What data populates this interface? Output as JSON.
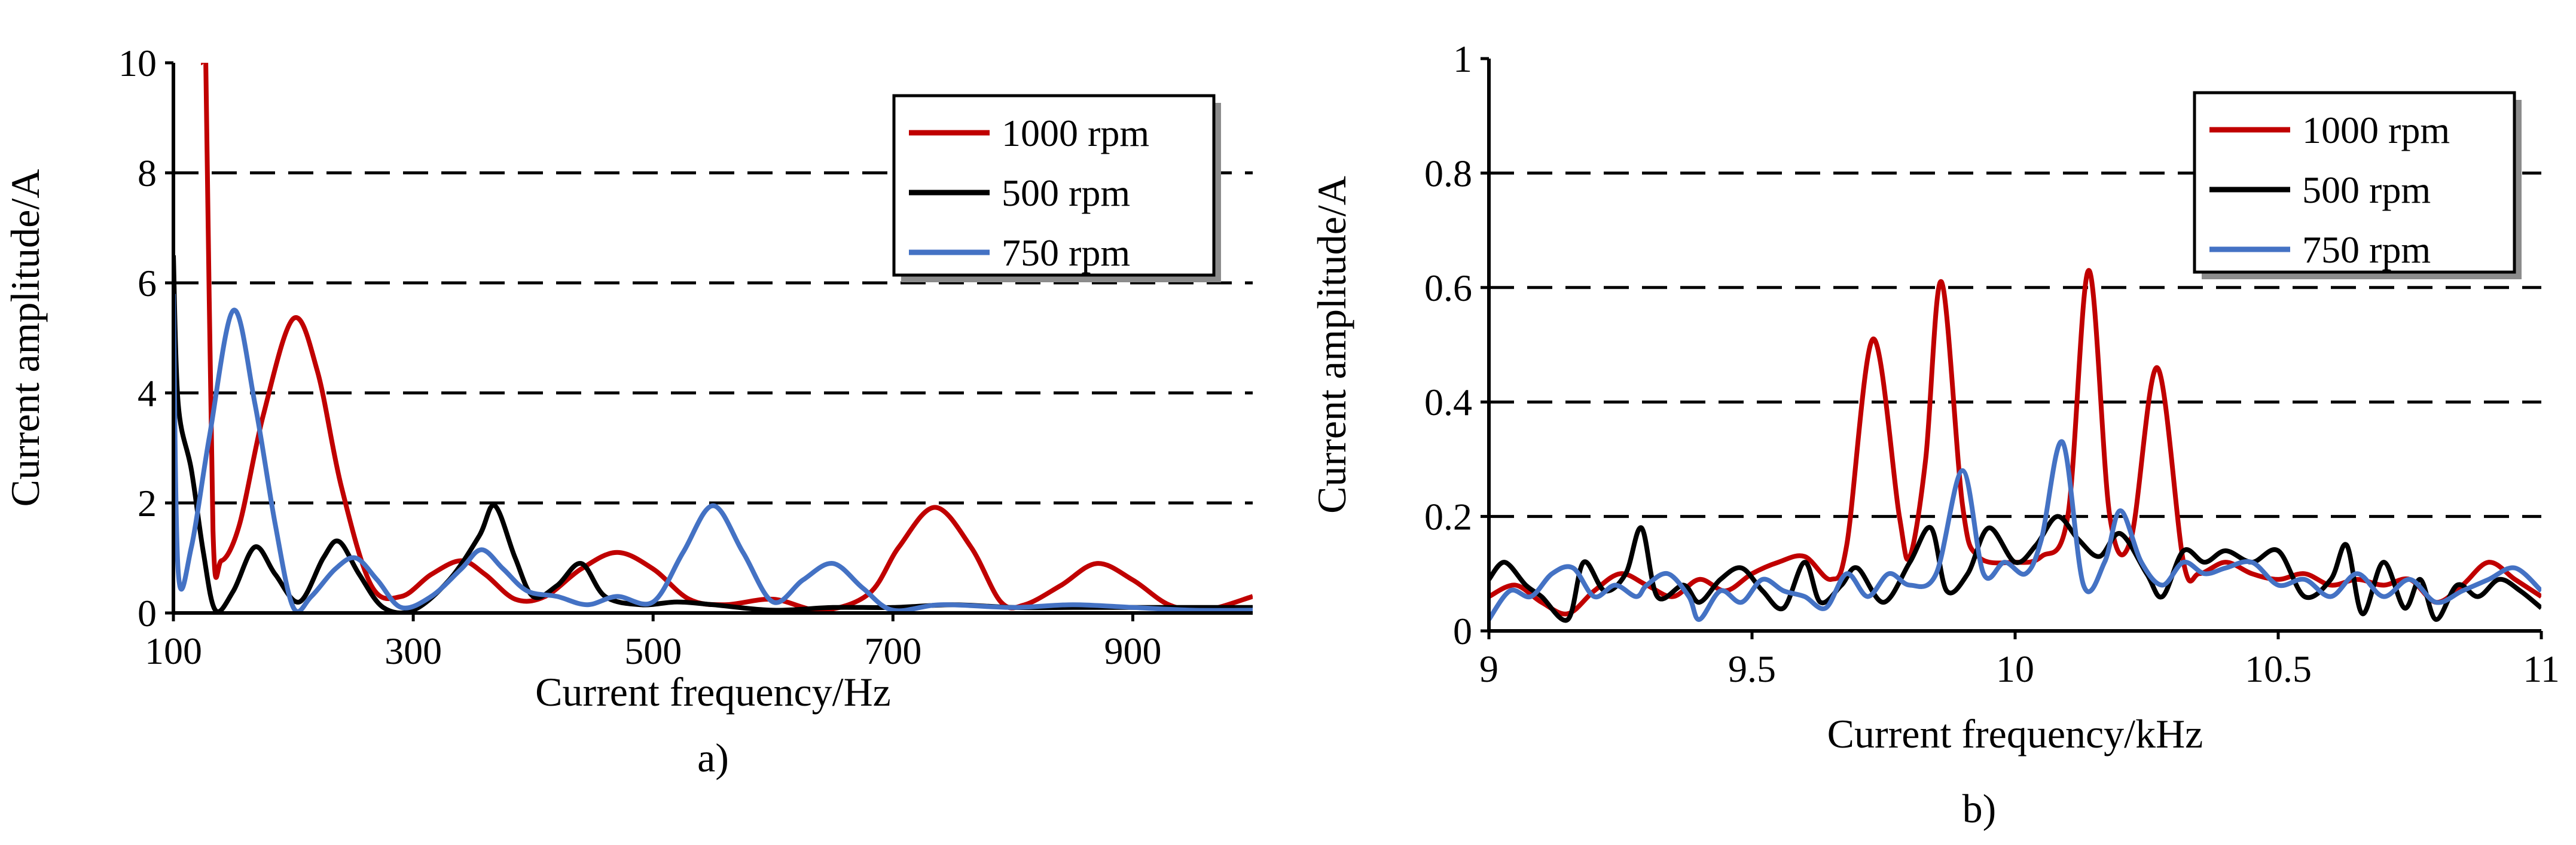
{
  "chart_data": [
    {
      "id": "a",
      "type": "line",
      "panel_label": "a)",
      "xlabel": "Current  frequency/Hz",
      "ylabel": "Current  amplitude/A",
      "xlim": [
        100,
        1000
      ],
      "ylim": [
        0,
        10
      ],
      "xticks": [
        100,
        300,
        500,
        700,
        900
      ],
      "yticks": [
        0,
        2,
        4,
        6,
        8,
        10
      ],
      "grid": "dashed-horizontal",
      "legend_position": "top-right",
      "series": [
        {
          "name": "1000 rpm",
          "color": "#c00000",
          "points": [
            [
              123,
              10
            ],
            [
              127,
              10
            ],
            [
              133,
              1.5
            ],
            [
              140,
              0.95
            ],
            [
              155,
              1.6
            ],
            [
              175,
              3.6
            ],
            [
              200,
              5.35
            ],
            [
              220,
              4.4
            ],
            [
              240,
              2.3
            ],
            [
              265,
              0.5
            ],
            [
              290,
              0.3
            ],
            [
              315,
              0.7
            ],
            [
              340,
              0.95
            ],
            [
              360,
              0.7
            ],
            [
              385,
              0.25
            ],
            [
              410,
              0.3
            ],
            [
              440,
              0.8
            ],
            [
              470,
              1.1
            ],
            [
              500,
              0.8
            ],
            [
              530,
              0.25
            ],
            [
              560,
              0.15
            ],
            [
              600,
              0.25
            ],
            [
              640,
              0.05
            ],
            [
              680,
              0.35
            ],
            [
              705,
              1.2
            ],
            [
              735,
              1.92
            ],
            [
              765,
              1.2
            ],
            [
              790,
              0.2
            ],
            [
              810,
              0.15
            ],
            [
              840,
              0.5
            ],
            [
              870,
              0.9
            ],
            [
              900,
              0.6
            ],
            [
              930,
              0.15
            ],
            [
              960,
              0.05
            ],
            [
              1000,
              0.3
            ]
          ]
        },
        {
          "name": "500 rpm",
          "color": "#000000",
          "points": [
            [
              100,
              6.5
            ],
            [
              104,
              3.8
            ],
            [
              115,
              2.6
            ],
            [
              125,
              1.1
            ],
            [
              135,
              0.05
            ],
            [
              150,
              0.4
            ],
            [
              168,
              1.2
            ],
            [
              185,
              0.7
            ],
            [
              205,
              0.2
            ],
            [
              225,
              1.0
            ],
            [
              238,
              1.3
            ],
            [
              255,
              0.7
            ],
            [
              275,
              0.1
            ],
            [
              300,
              0.05
            ],
            [
              330,
              0.6
            ],
            [
              355,
              1.4
            ],
            [
              368,
              1.95
            ],
            [
              385,
              1.0
            ],
            [
              400,
              0.3
            ],
            [
              420,
              0.5
            ],
            [
              440,
              0.9
            ],
            [
              460,
              0.3
            ],
            [
              490,
              0.15
            ],
            [
              520,
              0.2
            ],
            [
              550,
              0.15
            ],
            [
              600,
              0.05
            ],
            [
              650,
              0.1
            ],
            [
              700,
              0.1
            ],
            [
              750,
              0.15
            ],
            [
              800,
              0.1
            ],
            [
              850,
              0.1
            ],
            [
              900,
              0.1
            ],
            [
              1000,
              0.1
            ]
          ]
        },
        {
          "name": "750 rpm",
          "color": "#4472c4",
          "points": [
            [
              100,
              5.8
            ],
            [
              104,
              0.75
            ],
            [
              115,
              1.2
            ],
            [
              130,
              3.2
            ],
            [
              150,
              5.5
            ],
            [
              168,
              3.8
            ],
            [
              185,
              1.6
            ],
            [
              200,
              0.1
            ],
            [
              215,
              0.3
            ],
            [
              235,
              0.8
            ],
            [
              252,
              1.0
            ],
            [
              270,
              0.6
            ],
            [
              290,
              0.1
            ],
            [
              315,
              0.3
            ],
            [
              340,
              0.8
            ],
            [
              357,
              1.15
            ],
            [
              375,
              0.8
            ],
            [
              395,
              0.4
            ],
            [
              420,
              0.3
            ],
            [
              445,
              0.15
            ],
            [
              470,
              0.3
            ],
            [
              500,
              0.2
            ],
            [
              525,
              1.1
            ],
            [
              550,
              1.95
            ],
            [
              575,
              1.1
            ],
            [
              600,
              0.2
            ],
            [
              625,
              0.6
            ],
            [
              650,
              0.9
            ],
            [
              675,
              0.45
            ],
            [
              700,
              0.05
            ],
            [
              740,
              0.15
            ],
            [
              800,
              0.1
            ],
            [
              850,
              0.15
            ],
            [
              900,
              0.1
            ],
            [
              950,
              0.05
            ],
            [
              1000,
              0.05
            ]
          ]
        }
      ]
    },
    {
      "id": "b",
      "type": "line",
      "panel_label": "b)",
      "xlabel": "Current frequency/kHz",
      "ylabel": "Current  amplitude/A",
      "xlim": [
        9,
        11
      ],
      "ylim": [
        0,
        1
      ],
      "xticks": [
        "9",
        "9.5",
        "10",
        "10.5",
        "11"
      ],
      "yticks": [
        "0",
        "0.2",
        "0.4",
        "0.6",
        "0.8",
        "1"
      ],
      "grid": "dashed-horizontal",
      "legend_position": "top-right",
      "series": [
        {
          "name": "1000 rpm",
          "color": "#c00000",
          "points": [
            [
              9,
              0.06
            ],
            [
              9.05,
              0.08
            ],
            [
              9.1,
              0.05
            ],
            [
              9.15,
              0.03
            ],
            [
              9.2,
              0.07
            ],
            [
              9.25,
              0.1
            ],
            [
              9.3,
              0.08
            ],
            [
              9.35,
              0.06
            ],
            [
              9.4,
              0.09
            ],
            [
              9.45,
              0.07
            ],
            [
              9.5,
              0.1
            ],
            [
              9.55,
              0.12
            ],
            [
              9.6,
              0.13
            ],
            [
              9.65,
              0.09
            ],
            [
              9.68,
              0.15
            ],
            [
              9.73,
              0.51
            ],
            [
              9.78,
              0.2
            ],
            [
              9.8,
              0.13
            ],
            [
              9.83,
              0.3
            ],
            [
              9.86,
              0.61
            ],
            [
              9.9,
              0.22
            ],
            [
              9.93,
              0.13
            ],
            [
              10.0,
              0.12
            ],
            [
              10.05,
              0.13
            ],
            [
              10.1,
              0.2
            ],
            [
              10.14,
              0.63
            ],
            [
              10.18,
              0.2
            ],
            [
              10.22,
              0.16
            ],
            [
              10.27,
              0.46
            ],
            [
              10.32,
              0.12
            ],
            [
              10.35,
              0.1
            ],
            [
              10.4,
              0.12
            ],
            [
              10.45,
              0.1
            ],
            [
              10.5,
              0.09
            ],
            [
              10.55,
              0.1
            ],
            [
              10.6,
              0.08
            ],
            [
              10.65,
              0.09
            ],
            [
              10.7,
              0.08
            ],
            [
              10.75,
              0.09
            ],
            [
              10.8,
              0.05
            ],
            [
              10.85,
              0.08
            ],
            [
              10.9,
              0.12
            ],
            [
              10.95,
              0.09
            ],
            [
              11.0,
              0.06
            ]
          ]
        },
        {
          "name": "500 rpm",
          "color": "#000000",
          "points": [
            [
              9,
              0.09
            ],
            [
              9.03,
              0.12
            ],
            [
              9.07,
              0.08
            ],
            [
              9.1,
              0.06
            ],
            [
              9.15,
              0.02
            ],
            [
              9.18,
              0.12
            ],
            [
              9.22,
              0.07
            ],
            [
              9.26,
              0.1
            ],
            [
              9.29,
              0.18
            ],
            [
              9.32,
              0.06
            ],
            [
              9.37,
              0.08
            ],
            [
              9.4,
              0.05
            ],
            [
              9.44,
              0.09
            ],
            [
              9.48,
              0.11
            ],
            [
              9.52,
              0.07
            ],
            [
              9.56,
              0.04
            ],
            [
              9.6,
              0.12
            ],
            [
              9.63,
              0.05
            ],
            [
              9.67,
              0.08
            ],
            [
              9.7,
              0.11
            ],
            [
              9.75,
              0.05
            ],
            [
              9.8,
              0.12
            ],
            [
              9.84,
              0.18
            ],
            [
              9.87,
              0.07
            ],
            [
              9.91,
              0.1
            ],
            [
              9.95,
              0.18
            ],
            [
              10.0,
              0.12
            ],
            [
              10.04,
              0.15
            ],
            [
              10.08,
              0.2
            ],
            [
              10.12,
              0.16
            ],
            [
              10.16,
              0.13
            ],
            [
              10.2,
              0.17
            ],
            [
              10.25,
              0.1
            ],
            [
              10.28,
              0.06
            ],
            [
              10.32,
              0.14
            ],
            [
              10.36,
              0.12
            ],
            [
              10.4,
              0.14
            ],
            [
              10.45,
              0.12
            ],
            [
              10.5,
              0.14
            ],
            [
              10.55,
              0.06
            ],
            [
              10.6,
              0.09
            ],
            [
              10.63,
              0.15
            ],
            [
              10.66,
              0.03
            ],
            [
              10.7,
              0.12
            ],
            [
              10.74,
              0.04
            ],
            [
              10.77,
              0.09
            ],
            [
              10.8,
              0.02
            ],
            [
              10.84,
              0.08
            ],
            [
              10.88,
              0.06
            ],
            [
              10.92,
              0.09
            ],
            [
              10.96,
              0.07
            ],
            [
              11.0,
              0.04
            ]
          ]
        },
        {
          "name": "750 rpm",
          "color": "#4472c4",
          "points": [
            [
              9,
              0.02
            ],
            [
              9.04,
              0.07
            ],
            [
              9.08,
              0.06
            ],
            [
              9.12,
              0.1
            ],
            [
              9.16,
              0.11
            ],
            [
              9.2,
              0.06
            ],
            [
              9.24,
              0.08
            ],
            [
              9.28,
              0.06
            ],
            [
              9.3,
              0.08
            ],
            [
              9.34,
              0.1
            ],
            [
              9.38,
              0.06
            ],
            [
              9.4,
              0.02
            ],
            [
              9.44,
              0.07
            ],
            [
              9.48,
              0.05
            ],
            [
              9.52,
              0.09
            ],
            [
              9.56,
              0.07
            ],
            [
              9.6,
              0.06
            ],
            [
              9.64,
              0.04
            ],
            [
              9.68,
              0.1
            ],
            [
              9.72,
              0.06
            ],
            [
              9.76,
              0.1
            ],
            [
              9.8,
              0.08
            ],
            [
              9.85,
              0.1
            ],
            [
              9.9,
              0.28
            ],
            [
              9.94,
              0.1
            ],
            [
              9.98,
              0.12
            ],
            [
              10.02,
              0.1
            ],
            [
              10.05,
              0.16
            ],
            [
              10.09,
              0.33
            ],
            [
              10.13,
              0.08
            ],
            [
              10.17,
              0.12
            ],
            [
              10.2,
              0.21
            ],
            [
              10.24,
              0.12
            ],
            [
              10.28,
              0.08
            ],
            [
              10.32,
              0.12
            ],
            [
              10.36,
              0.1
            ],
            [
              10.4,
              0.11
            ],
            [
              10.45,
              0.12
            ],
            [
              10.5,
              0.08
            ],
            [
              10.55,
              0.09
            ],
            [
              10.6,
              0.06
            ],
            [
              10.65,
              0.1
            ],
            [
              10.7,
              0.06
            ],
            [
              10.75,
              0.09
            ],
            [
              10.8,
              0.05
            ],
            [
              10.85,
              0.07
            ],
            [
              10.9,
              0.09
            ],
            [
              10.95,
              0.11
            ],
            [
              11.0,
              0.07
            ]
          ]
        }
      ]
    }
  ]
}
